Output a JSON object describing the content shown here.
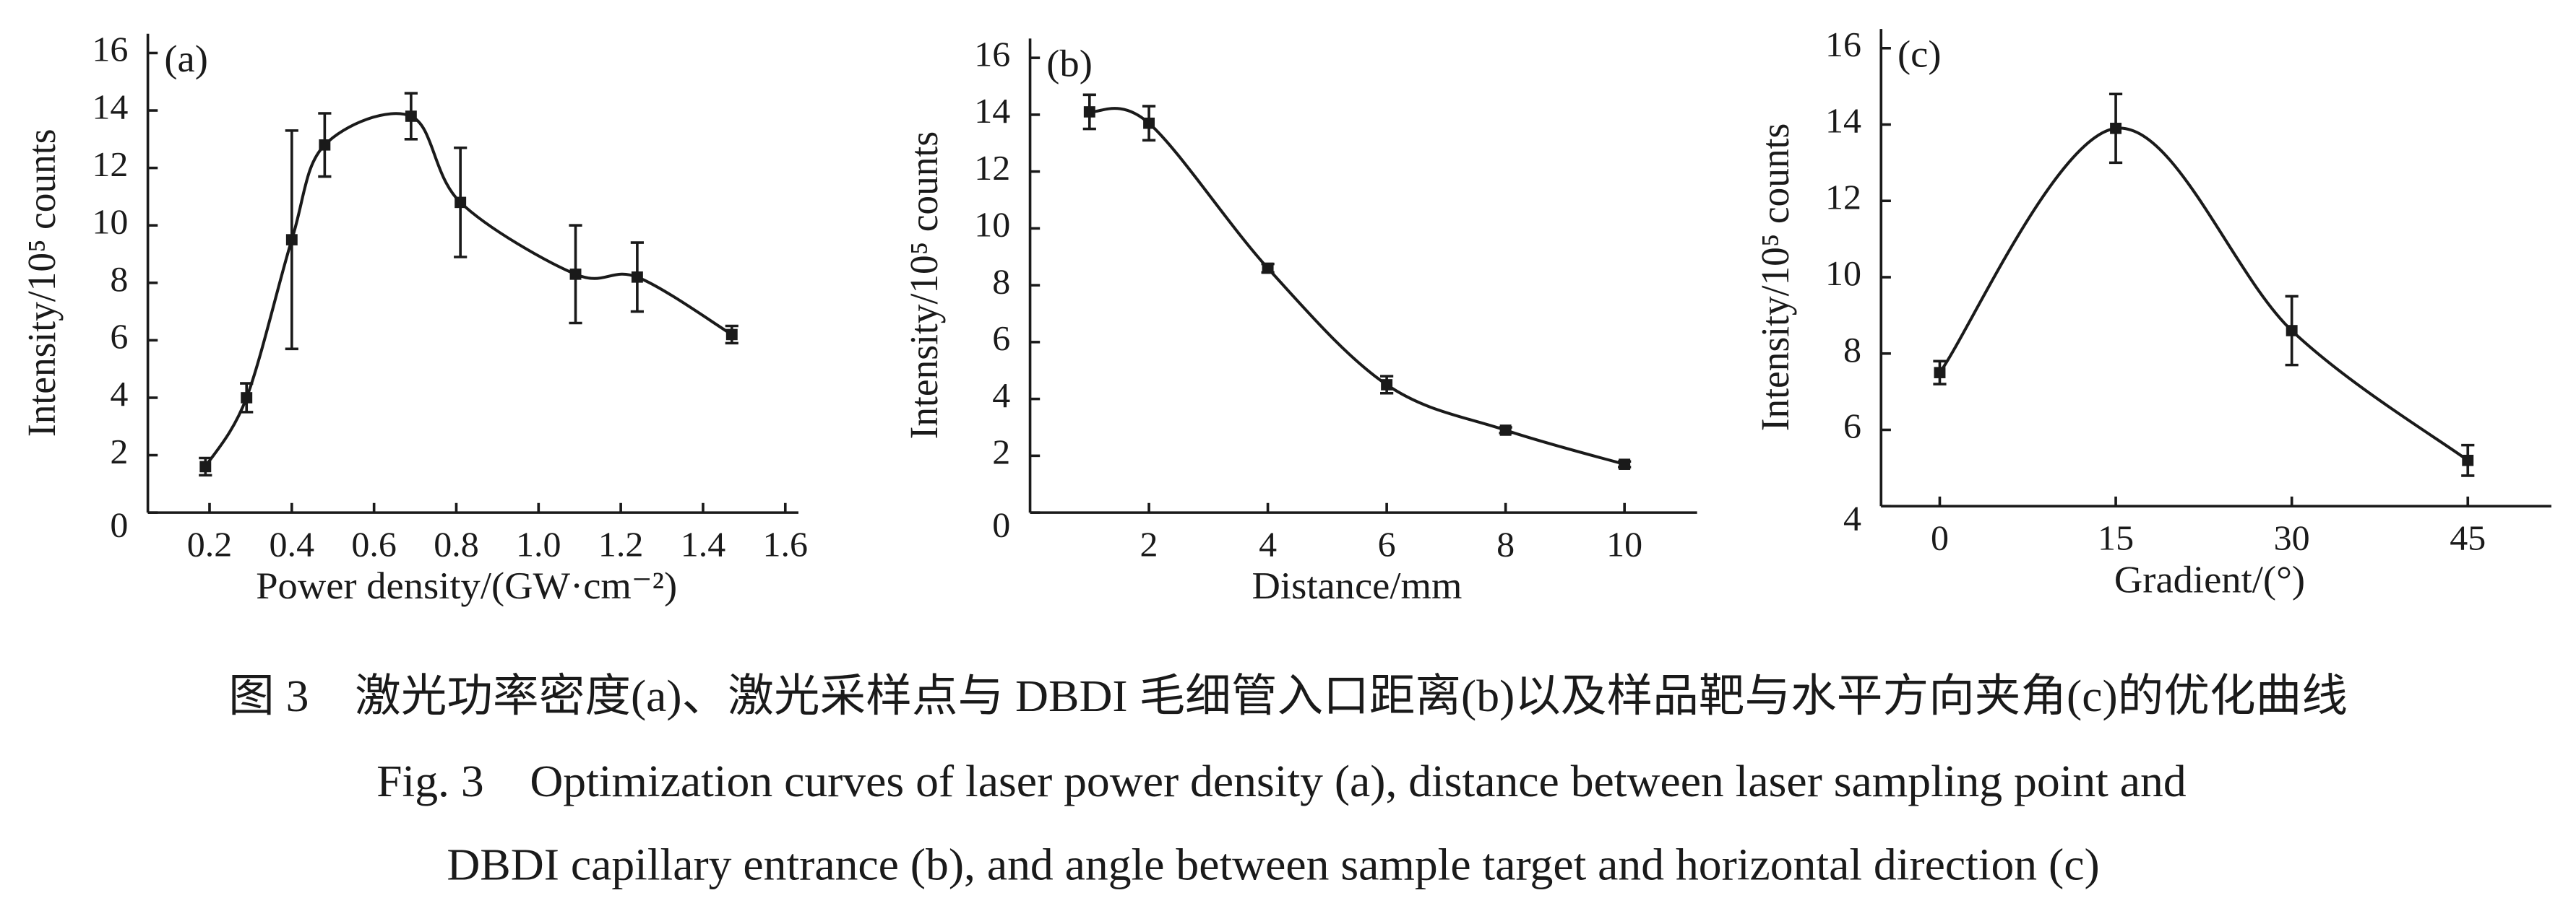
{
  "chart_data": [
    {
      "type": "scatter",
      "panel_label": "(a)",
      "x_label": "Power density/(GW·cm⁻²)",
      "y_label": "Intensity/10⁵ counts",
      "x": [
        0.19,
        0.29,
        0.4,
        0.48,
        0.69,
        0.81,
        1.09,
        1.24,
        1.47
      ],
      "values": [
        1.6,
        4.0,
        9.5,
        12.8,
        13.8,
        10.8,
        8.3,
        8.2,
        6.2
      ],
      "errors": [
        0.3,
        0.5,
        3.8,
        1.1,
        0.8,
        1.9,
        1.7,
        1.2,
        0.3
      ],
      "color": "#1a1a1a",
      "xlim": [
        0.05,
        1.6
      ],
      "xticks": [
        0.2,
        0.4,
        0.6,
        0.8,
        {
          "value": 1.0,
          "label": "1.0"
        },
        1.2,
        1.4,
        1.6
      ],
      "ylim": [
        0,
        16
      ],
      "yticks": [
        0,
        2,
        4,
        6,
        8,
        10,
        12,
        14,
        16
      ]
    },
    {
      "type": "scatter",
      "panel_label": "(b)",
      "x_label": "Distance/mm",
      "y_label": "Intensity/10⁵ counts",
      "x": [
        1,
        2,
        4,
        6,
        8,
        10
      ],
      "values": [
        14.1,
        13.7,
        8.6,
        4.5,
        2.9,
        1.7
      ],
      "errors": [
        0.6,
        0.6,
        0.15,
        0.3,
        0.1,
        0.1
      ],
      "color": "#1a1a1a",
      "xlim": [
        0,
        11
      ],
      "xticks": [
        2,
        4,
        6,
        8,
        10
      ],
      "ylim": [
        0,
        16
      ],
      "yticks": [
        0,
        2,
        4,
        6,
        8,
        10,
        12,
        14,
        16
      ]
    },
    {
      "type": "scatter",
      "panel_label": "(c)",
      "x_label": "Gradient/(°)",
      "y_label": "Intensity/10⁵ counts",
      "x": [
        0,
        15,
        30,
        45
      ],
      "values": [
        7.5,
        13.9,
        8.6,
        5.2
      ],
      "errors": [
        0.3,
        0.9,
        0.9,
        0.4
      ],
      "color": "#1a1a1a",
      "xlim": [
        -5,
        51
      ],
      "xticks": [
        0,
        15,
        30,
        45
      ],
      "ylim": [
        4,
        16
      ],
      "yticks": [
        4,
        6,
        8,
        10,
        12,
        14,
        16
      ]
    }
  ],
  "caption": {
    "cn": "图 3　激光功率密度(a)、激光采样点与 DBDI 毛细管入口距离(b)以及样品靶与水平方向夹角(c)的优化曲线",
    "en_1": "Fig. 3　Optimization curves of laser power density (a), distance between laser sampling point and",
    "en_2": "DBDI capillary entrance (b), and angle between sample target and horizontal direction (c)"
  }
}
